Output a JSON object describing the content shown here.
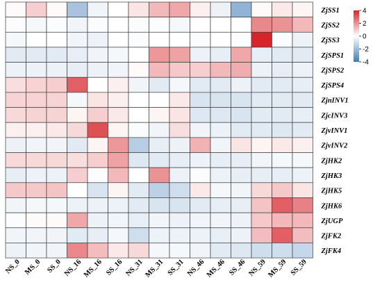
{
  "chart_data": {
    "type": "heatmap",
    "columns": [
      "NS_0",
      "MS_0",
      "SS_0",
      "NS_16",
      "MS_16",
      "SS_16",
      "NS_31",
      "MS_31",
      "SS_31",
      "NS_46",
      "MS_46",
      "SS_46",
      "NS_59",
      "MS_59",
      "SS_59"
    ],
    "rows": [
      "ZjSS1",
      "ZjSS2",
      "ZjSS3",
      "ZjSPS1",
      "ZjSPS2",
      "ZjSPS4",
      "ZjnINV1",
      "ZjcINV3",
      "ZjvINV1",
      "ZjvINV2",
      "ZjHK2",
      "ZjHK3",
      "ZjHK5",
      "ZjHK6",
      "ZjUGP",
      "ZjFK2",
      "ZjFK4"
    ],
    "values": [
      [
        0.1,
        0.9,
        0.1,
        -1.8,
        -0.3,
        0.0,
        0.5,
        1.3,
        1.6,
        0.3,
        -0.4,
        -2.3,
        0.1,
        0.4,
        0.2
      ],
      [
        -0.1,
        -0.2,
        -0.1,
        -0.3,
        -0.1,
        0.0,
        -0.1,
        -0.1,
        -0.2,
        0.0,
        0.0,
        0.0,
        2.2,
        2.0,
        1.3
      ],
      [
        -0.2,
        0.0,
        0.0,
        -0.3,
        -0.4,
        0.0,
        -0.1,
        0.0,
        0.0,
        -0.1,
        0.0,
        -0.1,
        4.0,
        -0.1,
        -0.4
      ],
      [
        -0.6,
        -0.6,
        -0.6,
        -0.5,
        -0.3,
        -0.2,
        0.0,
        1.9,
        1.7,
        -0.4,
        -0.5,
        1.6,
        -0.5,
        -0.6,
        -0.6
      ],
      [
        -0.4,
        -0.4,
        -0.4,
        -0.5,
        -0.4,
        -0.3,
        0.1,
        1.3,
        1.0,
        0.9,
        1.3,
        1.5,
        -0.4,
        -0.5,
        -0.4
      ],
      [
        0.6,
        0.8,
        0.9,
        2.9,
        0.0,
        0.3,
        -0.3,
        -0.6,
        -0.2,
        -0.6,
        -0.6,
        -0.4,
        -0.6,
        -0.6,
        -0.5
      ],
      [
        0.8,
        0.8,
        0.8,
        -0.2,
        0.5,
        0.3,
        0.0,
        0.0,
        0.4,
        -0.8,
        -0.8,
        -0.8,
        -0.6,
        -0.6,
        -0.6
      ],
      [
        0.7,
        0.8,
        0.8,
        0.2,
        0.9,
        0.4,
        0.0,
        0.2,
        0.5,
        -0.7,
        -0.7,
        -0.8,
        -0.6,
        -0.6,
        -0.5
      ],
      [
        0.3,
        0.3,
        0.4,
        0.7,
        3.2,
        0.2,
        -0.1,
        -0.3,
        0.6,
        -0.3,
        -0.4,
        -0.6,
        -0.6,
        -0.7,
        -0.6
      ],
      [
        -0.4,
        -0.3,
        -0.3,
        -0.6,
        0.2,
        1.9,
        -1.5,
        -0.5,
        -0.4,
        1.4,
        -0.3,
        0.5,
        0.2,
        0.4,
        0.3
      ],
      [
        0.7,
        0.7,
        0.7,
        0.6,
        0.9,
        1.7,
        -0.7,
        -0.6,
        -0.5,
        -0.4,
        -0.5,
        -0.5,
        -0.3,
        -0.2,
        -0.2
      ],
      [
        -0.5,
        -0.4,
        -0.4,
        0.9,
        -0.1,
        1.3,
        0.0,
        2.0,
        -0.4,
        -0.1,
        -0.4,
        -0.5,
        -0.5,
        -0.5,
        -0.4
      ],
      [
        1.0,
        1.0,
        1.1,
        0.0,
        -0.8,
        0.2,
        -0.6,
        -1.4,
        -1.0,
        0.4,
        -0.2,
        -0.3,
        0.7,
        1.0,
        0.5
      ],
      [
        -0.3,
        -0.2,
        -0.2,
        -0.4,
        -0.4,
        -0.4,
        -0.6,
        -0.8,
        -0.8,
        -0.6,
        -0.5,
        -0.5,
        1.1,
        2.9,
        2.3
      ],
      [
        -0.1,
        0.1,
        0.1,
        1.6,
        -0.4,
        -0.3,
        -0.5,
        -0.3,
        -0.4,
        -0.3,
        -0.3,
        -0.4,
        1.0,
        1.3,
        1.3
      ],
      [
        -0.3,
        -0.3,
        -0.3,
        -0.6,
        -0.5,
        -0.2,
        -1.0,
        -0.4,
        -0.4,
        -0.4,
        -0.5,
        -0.4,
        1.2,
        2.9,
        1.2
      ],
      [
        -0.4,
        -0.3,
        -0.3,
        2.2,
        1.2,
        0.4,
        0.7,
        -0.2,
        -0.2,
        -0.3,
        -0.6,
        -0.7,
        -1.0,
        -1.0,
        -1.2
      ]
    ],
    "colorbar": {
      "ticks": [
        4,
        2,
        0,
        -2,
        -4
      ],
      "range": [
        -4,
        4
      ]
    },
    "colors": {
      "low": "#3f7ab8",
      "mid": "#ffffff",
      "high": "#d7242a"
    },
    "grid": true,
    "legend": "top-right"
  }
}
